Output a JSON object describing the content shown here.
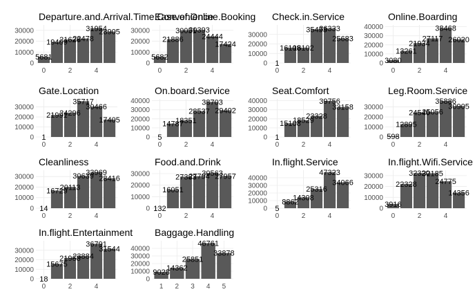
{
  "chart_data": [
    {
      "type": "bar",
      "title": "Departure.and.Arrival.Time.Convenience",
      "x": [
        0,
        1,
        2,
        3,
        4,
        5
      ],
      "values": [
        5681,
        19409,
        21626,
        22478,
        31954,
        28905
      ],
      "ylim": [
        0,
        35000
      ],
      "yticks": [
        0,
        10000,
        20000,
        30000
      ],
      "xticks": [
        0,
        2,
        4
      ],
      "grid": true
    },
    {
      "type": "bar",
      "title": "Ease.of.Online.Booking",
      "x": [
        0,
        1,
        2,
        3,
        4,
        5
      ],
      "values": [
        5682,
        21886,
        30051,
        30393,
        24444,
        17424
      ],
      "ylim": [
        0,
        35000
      ],
      "yticks": [
        0,
        10000,
        20000,
        30000
      ],
      "xticks": [
        0,
        2,
        4
      ],
      "grid": true
    },
    {
      "type": "bar",
      "title": "Check.in.Service",
      "x": [
        0,
        1,
        2,
        3,
        4,
        5
      ],
      "values": [
        1,
        16108,
        16102,
        35453,
        36333,
        25683
      ],
      "ylim": [
        0,
        40000
      ],
      "yticks": [
        0,
        10000,
        20000,
        30000
      ],
      "xticks": [
        0,
        2,
        4
      ],
      "grid": true
    },
    {
      "type": "bar",
      "title": "Online.Boarding",
      "x": [
        0,
        1,
        2,
        3,
        4,
        5
      ],
      "values": [
        3080,
        13261,
        21934,
        27117,
        38468,
        26020
      ],
      "ylim": [
        0,
        42000
      ],
      "yticks": [
        0,
        10000,
        20000,
        30000,
        40000
      ],
      "xticks": [
        0,
        2,
        4
      ],
      "grid": true
    },
    {
      "type": "bar",
      "title": "Gate.Location",
      "x": [
        0,
        1,
        2,
        3,
        4,
        5
      ],
      "values": [
        1,
        21991,
        24296,
        35717,
        30466,
        17405
      ],
      "ylim": [
        0,
        38000
      ],
      "yticks": [
        0,
        10000,
        20000,
        30000
      ],
      "xticks": [
        0,
        2,
        4
      ],
      "grid": true
    },
    {
      "type": "bar",
      "title": "On.board.Service",
      "x": [
        0,
        1,
        2,
        3,
        4,
        5
      ],
      "values": [
        5,
        14787,
        18351,
        28537,
        38703,
        29402
      ],
      "ylim": [
        0,
        42000
      ],
      "yticks": [
        0,
        10000,
        20000,
        30000,
        40000
      ],
      "xticks": [
        0,
        2,
        4
      ],
      "grid": true
    },
    {
      "type": "bar",
      "title": "Seat.Comfort",
      "x": [
        0,
        1,
        2,
        3,
        4,
        5
      ],
      "values": [
        1,
        15108,
        18529,
        23328,
        39756,
        33158
      ],
      "ylim": [
        0,
        42000
      ],
      "yticks": [
        0,
        10000,
        20000,
        30000,
        40000
      ],
      "xticks": [
        0,
        2,
        4
      ],
      "grid": true
    },
    {
      "type": "bar",
      "title": "Leg.Room.Service",
      "x": [
        0,
        1,
        2,
        3,
        4,
        5
      ],
      "values": [
        598,
        12895,
        24540,
        25056,
        35886,
        30905
      ],
      "ylim": [
        0,
        38000
      ],
      "yticks": [
        0,
        10000,
        20000,
        30000
      ],
      "xticks": [
        0,
        2,
        4
      ],
      "grid": true
    },
    {
      "type": "bar",
      "title": "Cleanliness",
      "x": [
        0,
        1,
        2,
        3,
        4,
        5
      ],
      "values": [
        14,
        16729,
        20113,
        30639,
        33969,
        28416
      ],
      "ylim": [
        0,
        36000
      ],
      "yticks": [
        0,
        10000,
        20000,
        30000
      ],
      "xticks": [
        0,
        2,
        4
      ],
      "grid": true
    },
    {
      "type": "bar",
      "title": "Food.and.Drink",
      "x": [
        0,
        1,
        2,
        3,
        4,
        5
      ],
      "values": [
        132,
        16051,
        27383,
        27794,
        30563,
        27957
      ],
      "ylim": [
        0,
        33000
      ],
      "yticks": [
        0,
        10000,
        20000,
        30000
      ],
      "xticks": [
        0,
        2,
        4
      ],
      "grid": true
    },
    {
      "type": "bar",
      "title": "In.flight.Service",
      "x": [
        0,
        1,
        2,
        3,
        4,
        5
      ],
      "values": [
        5,
        8862,
        14308,
        25316,
        47323,
        34066
      ],
      "ylim": [
        0,
        50000
      ],
      "yticks": [
        0,
        10000,
        20000,
        30000,
        40000
      ],
      "xticks": [
        0,
        2,
        4
      ],
      "grid": true
    },
    {
      "type": "bar",
      "title": "In.flight.Wifi.Service",
      "x": [
        0,
        1,
        2,
        3,
        4,
        5
      ],
      "values": [
        3916,
        22328,
        32320,
        32185,
        24775,
        14356
      ],
      "ylim": [
        0,
        35000
      ],
      "yticks": [
        0,
        10000,
        20000,
        30000
      ],
      "xticks": [
        0,
        2,
        4
      ],
      "grid": true
    },
    {
      "type": "bar",
      "title": "In.flight.Entertainment",
      "x": [
        0,
        1,
        2,
        3,
        4,
        5
      ],
      "values": [
        18,
        15675,
        21968,
        23884,
        36791,
        31544
      ],
      "ylim": [
        0,
        40000
      ],
      "yticks": [
        0,
        10000,
        20000,
        30000
      ],
      "xticks": [
        0,
        2,
        4
      ],
      "grid": true
    },
    {
      "type": "bar",
      "title": "Baggage.Handling",
      "x": [
        1,
        2,
        3,
        4,
        5
      ],
      "values": [
        9028,
        14362,
        25851,
        46761,
        33878
      ],
      "ylim": [
        0,
        50000
      ],
      "yticks": [
        0,
        10000,
        20000,
        30000,
        40000
      ],
      "xticks": [
        1,
        2,
        3,
        4,
        5
      ],
      "grid": true
    }
  ],
  "colors": {
    "bar": "#595959",
    "grid_major": "#ebebeb",
    "grid_minor": "#f5f5f5",
    "text": "#000000",
    "tick_text": "#4d4d4d"
  }
}
